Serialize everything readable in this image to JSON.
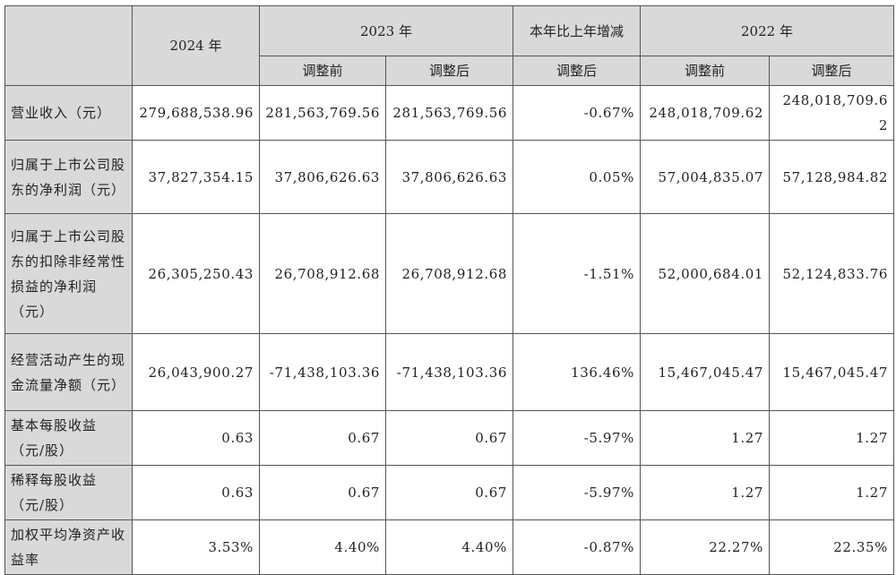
{
  "header": {
    "y2024": "2024 年",
    "y2023": "2023 年",
    "change": "本年比上年增减",
    "y2022": "2022 年",
    "sub": [
      "调整前",
      "调整后",
      "调整后",
      "调整前",
      "调整后"
    ]
  },
  "rows": [
    {
      "label": "营业收入（元）",
      "values": [
        "279,688,538.96",
        "281,563,769.56",
        "281,563,769.56",
        "-0.67%",
        "248,018,709.62",
        "248,018,709.62"
      ]
    },
    {
      "label": "归属于上市公司股东的净利润（元）",
      "values": [
        "37,827,354.15",
        "37,806,626.63",
        "37,806,626.63",
        "0.05%",
        "57,004,835.07",
        "57,128,984.82"
      ]
    },
    {
      "label": "归属于上市公司股东的扣除非经常性损益的净利润（元）",
      "values": [
        "26,305,250.43",
        "26,708,912.68",
        "26,708,912.68",
        "-1.51%",
        "52,000,684.01",
        "52,124,833.76"
      ]
    },
    {
      "label": "经营活动产生的现金流量净额（元）",
      "values": [
        "26,043,900.27",
        "-71,438,103.36",
        "-71,438,103.36",
        "136.46%",
        "15,467,045.47",
        "15,467,045.47"
      ]
    },
    {
      "label": "基本每股收益（元/股）",
      "values": [
        "0.63",
        "0.67",
        "0.67",
        "-5.97%",
        "1.27",
        "1.27"
      ]
    },
    {
      "label": "稀释每股收益（元/股）",
      "values": [
        "0.63",
        "0.67",
        "0.67",
        "-5.97%",
        "1.27",
        "1.27"
      ]
    },
    {
      "label": "加权平均净资产收益率",
      "values": [
        "3.53%",
        "4.40%",
        "4.40%",
        "-0.87%",
        "22.27%",
        "22.35%"
      ]
    }
  ]
}
